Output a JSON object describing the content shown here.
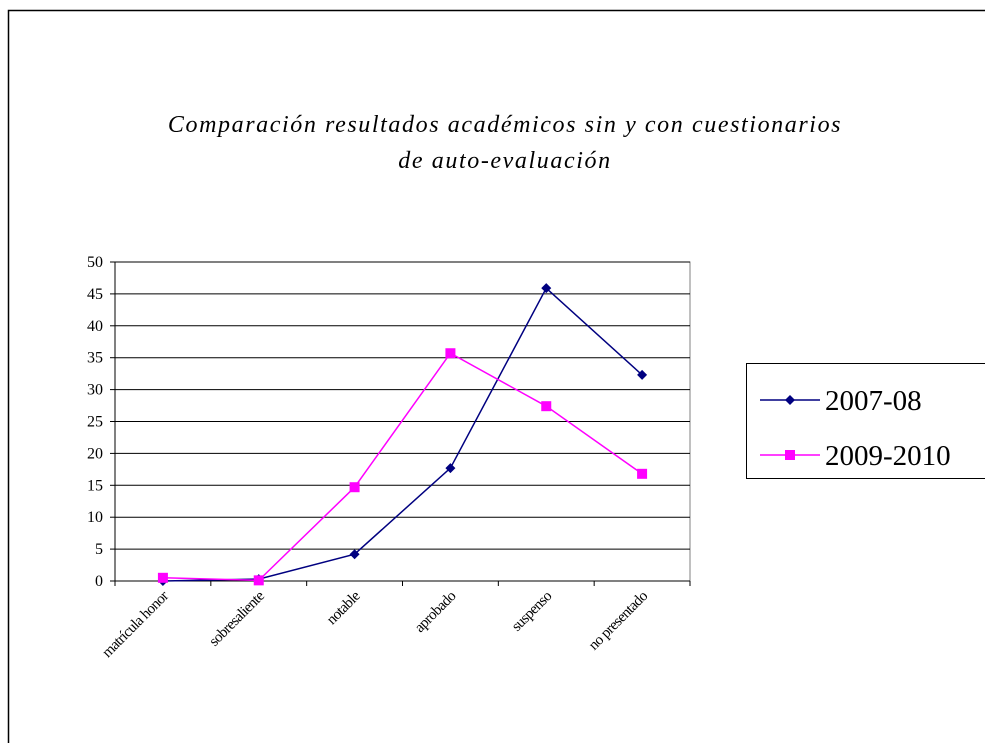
{
  "chart_data": {
    "type": "line",
    "title": [
      "Comparación resultados académicos sin y con cuestionarios",
      "de auto-evaluación"
    ],
    "categories": [
      "matrícula honor",
      "sobresaliente",
      "notable",
      "aprobado",
      "suspenso",
      "no presentado"
    ],
    "series": [
      {
        "name": "2007-08",
        "color": "#000080",
        "marker": "diamond",
        "values": [
          0,
          0.3,
          4.2,
          17.7,
          45.9,
          32.3
        ]
      },
      {
        "name": "2009-2010",
        "color": "#ff00ff",
        "marker": "square",
        "values": [
          0.5,
          0.1,
          14.7,
          35.7,
          27.4,
          16.8
        ]
      }
    ],
    "ylim": [
      0,
      50
    ],
    "yticks": [
      0,
      5,
      10,
      15,
      20,
      25,
      30,
      35,
      40,
      45,
      50
    ],
    "grid": true,
    "legend": "right"
  }
}
